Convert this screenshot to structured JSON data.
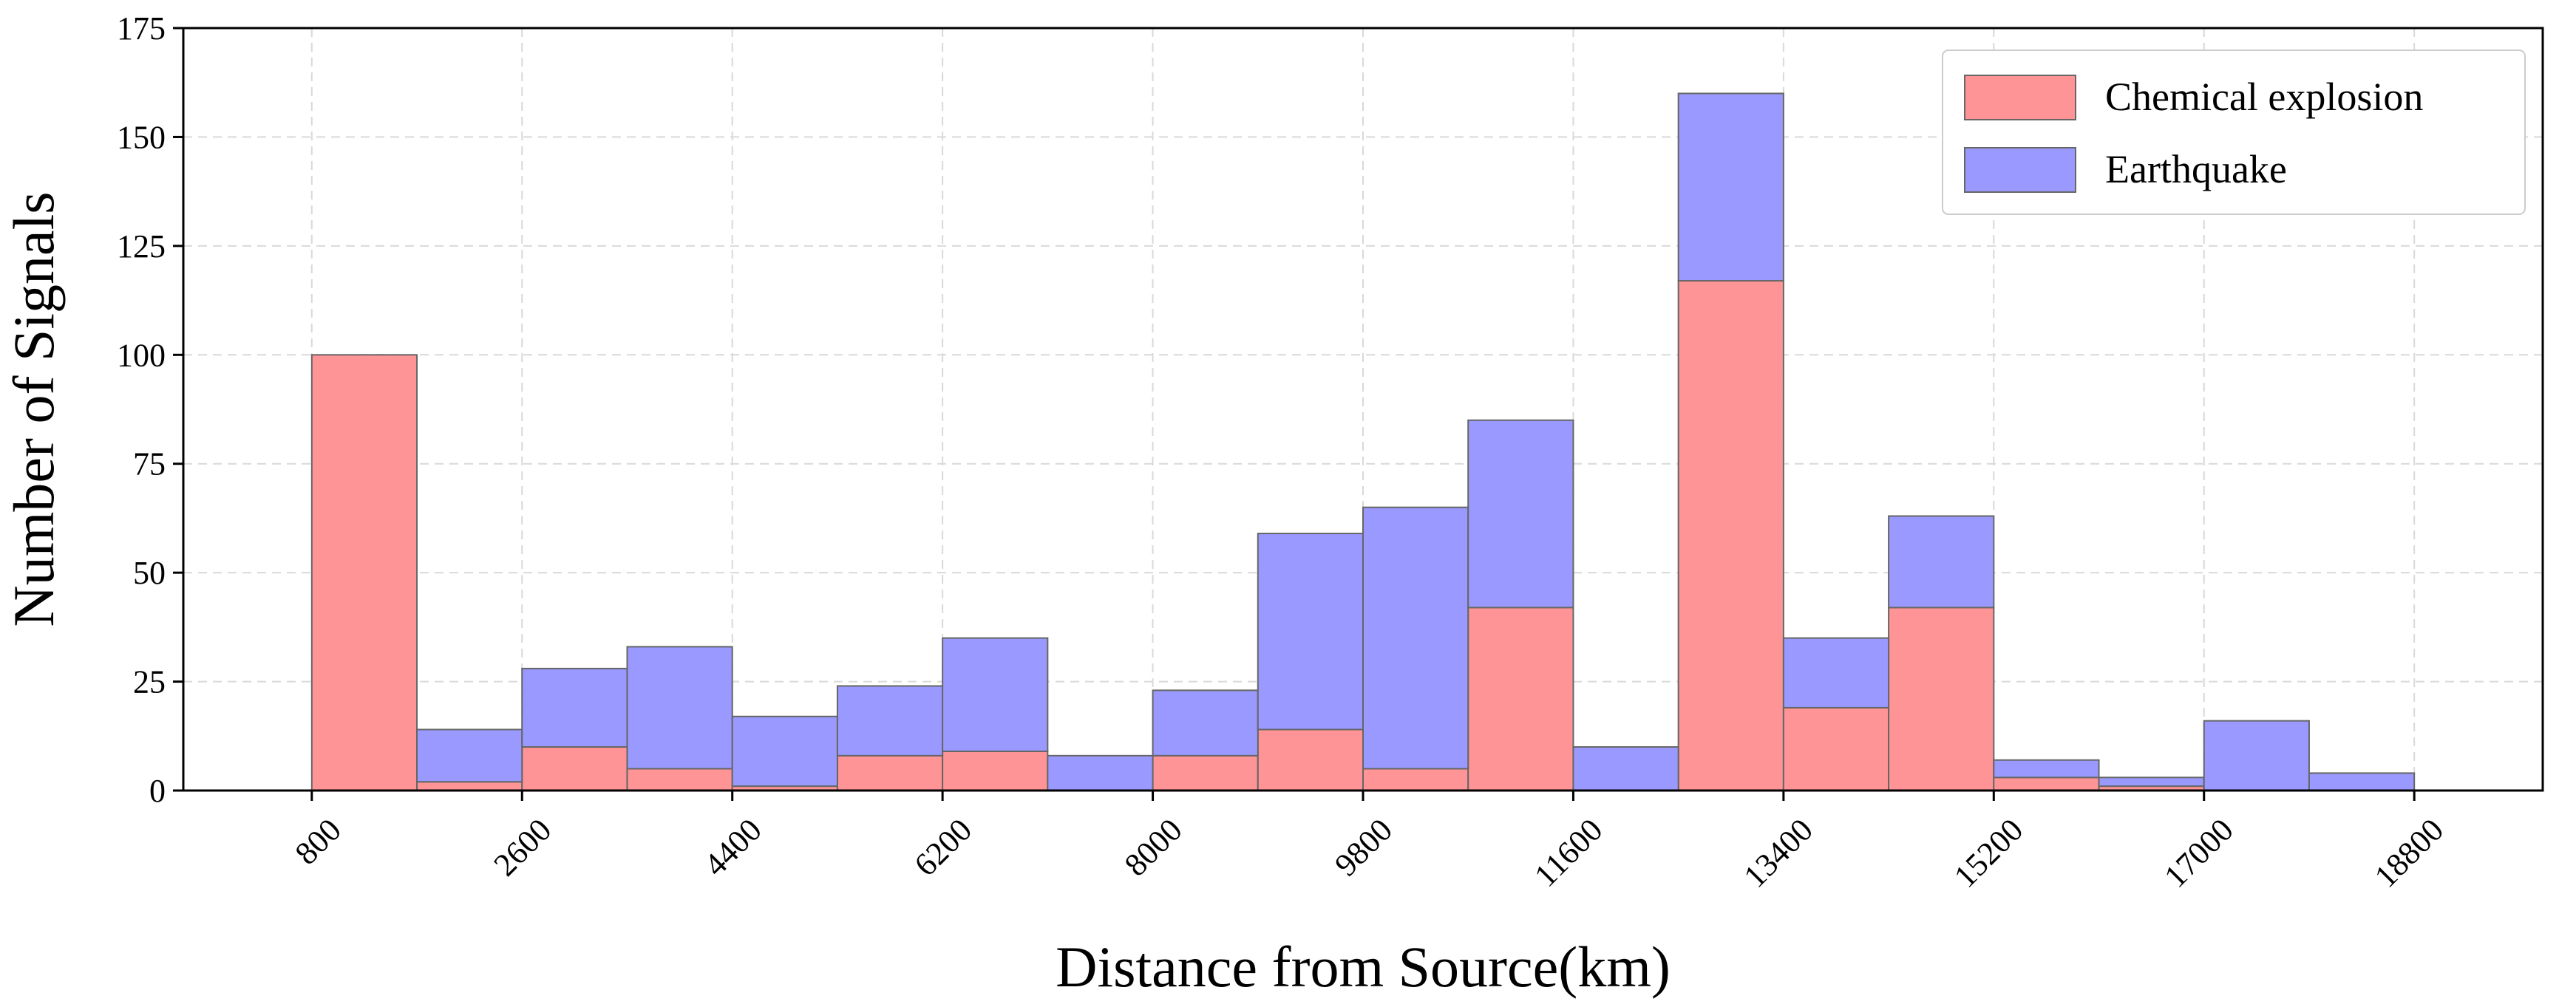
{
  "chart_data": {
    "type": "bar",
    "stacked": true,
    "xlabel": "Distance from Source(km)",
    "ylabel": "Number of Signals",
    "xlim": [
      -300,
      19900
    ],
    "ylim": [
      0,
      175
    ],
    "grid": true,
    "legend_position": "top-right",
    "x_ticks": [
      800,
      2600,
      4400,
      6200,
      8000,
      9800,
      11600,
      13400,
      15200,
      17000,
      18800
    ],
    "y_ticks": [
      0,
      25,
      50,
      75,
      100,
      125,
      150,
      175
    ],
    "bin_edges": [
      800,
      2600,
      4400,
      6200,
      8000,
      9800,
      11600,
      13400,
      15200,
      17000,
      18800
    ],
    "bins": [
      [
        800,
        1700
      ],
      [
        1700,
        2600
      ],
      [
        2600,
        3500
      ],
      [
        3500,
        4400
      ],
      [
        4400,
        5300
      ],
      [
        5300,
        6200
      ],
      [
        6200,
        7100
      ],
      [
        7100,
        8000
      ],
      [
        8000,
        8900
      ],
      [
        8900,
        9800
      ],
      [
        9800,
        10700
      ],
      [
        10700,
        11600
      ],
      [
        11600,
        12500
      ],
      [
        12500,
        13400
      ],
      [
        13400,
        14300
      ],
      [
        14300,
        15200
      ],
      [
        15200,
        16100
      ],
      [
        16100,
        17000
      ],
      [
        17000,
        17900
      ],
      [
        17900,
        18800
      ]
    ],
    "series": [
      {
        "name": "Chemical explosion",
        "color": "#ff9496",
        "values": [
          100,
          2,
          10,
          5,
          1,
          8,
          9,
          0,
          8,
          14,
          5,
          42,
          0,
          117,
          19,
          42,
          3,
          1,
          0,
          0
        ]
      },
      {
        "name": "Earthquake",
        "color": "#9999ff",
        "values": [
          0,
          12,
          18,
          28,
          16,
          16,
          26,
          8,
          15,
          45,
          60,
          43,
          10,
          43,
          16,
          21,
          4,
          2,
          16,
          4
        ]
      }
    ]
  }
}
